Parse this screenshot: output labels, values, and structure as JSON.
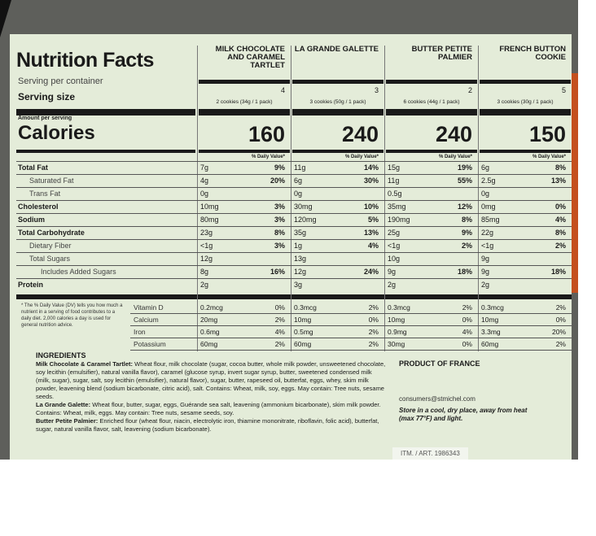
{
  "title": "Nutrition Facts",
  "serving_per_container_label": "Serving per container",
  "serving_size_label": "Serving size",
  "amount_per_serving_label": "Amount per serving",
  "calories_label": "Calories",
  "products": [
    {
      "name": "MILK CHOCOLATE AND CARAMEL TARTLET",
      "servings": "4",
      "size": "2 cookies (34g / 1 pack)",
      "calories": "160",
      "dv_header": "% Daily Value*"
    },
    {
      "name": "LA GRANDE GALETTE",
      "servings": "3",
      "size": "3 cookies (50g / 1 pack)",
      "calories": "240",
      "dv_header": "% Daily Value*"
    },
    {
      "name": "BUTTER PETITE PALMIER",
      "servings": "2",
      "size": "6 cookies (44g / 1 pack)",
      "calories": "240",
      "dv_header": "% Daily Value*"
    },
    {
      "name": "FRENCH BUTTON COOKIE",
      "servings": "5",
      "size": "3 cookies (30g / 1 pack)",
      "calories": "150",
      "dv_header": "% Daily Value*"
    }
  ],
  "nutrients": [
    {
      "label": "Total Fat",
      "values": [
        {
          "amount": "7g",
          "dv": "9%"
        },
        {
          "amount": "11g",
          "dv": "14%"
        },
        {
          "amount": "15g",
          "dv": "19%"
        },
        {
          "amount": "6g",
          "dv": "8%"
        }
      ]
    },
    {
      "label": "Saturated Fat",
      "values": [
        {
          "amount": "4g",
          "dv": "20%"
        },
        {
          "amount": "6g",
          "dv": "30%"
        },
        {
          "amount": "11g",
          "dv": "55%"
        },
        {
          "amount": "2.5g",
          "dv": "13%"
        }
      ]
    },
    {
      "label": "Trans Fat",
      "values": [
        {
          "amount": "0g"
        },
        {
          "amount": "0g"
        },
        {
          "amount": "0.5g"
        },
        {
          "amount": "0g"
        }
      ]
    },
    {
      "label": "Cholesterol",
      "values": [
        {
          "amount": "10mg",
          "dv": "3%"
        },
        {
          "amount": "30mg",
          "dv": "10%"
        },
        {
          "amount": "35mg",
          "dv": "12%"
        },
        {
          "amount": "0mg",
          "dv": "0%"
        }
      ]
    },
    {
      "label": "Sodium",
      "values": [
        {
          "amount": "80mg",
          "dv": "3%"
        },
        {
          "amount": "120mg",
          "dv": "5%"
        },
        {
          "amount": "190mg",
          "dv": "8%"
        },
        {
          "amount": "85mg",
          "dv": "4%"
        }
      ]
    },
    {
      "label": "Total Carbohydrate",
      "values": [
        {
          "amount": "23g",
          "dv": "8%"
        },
        {
          "amount": "35g",
          "dv": "13%"
        },
        {
          "amount": "25g",
          "dv": "9%"
        },
        {
          "amount": "22g",
          "dv": "8%"
        }
      ]
    },
    {
      "label": "Dietary Fiber",
      "values": [
        {
          "amount": "<1g",
          "dv": "3%"
        },
        {
          "amount": "1g",
          "dv": "4%"
        },
        {
          "amount": "<1g",
          "dv": "2%"
        },
        {
          "amount": "<1g",
          "dv": "2%"
        }
      ]
    },
    {
      "label": "Total Sugars",
      "values": [
        {
          "amount": "12g"
        },
        {
          "amount": "13g"
        },
        {
          "amount": "10g"
        },
        {
          "amount": "9g"
        }
      ]
    },
    {
      "label": "Includes Added Sugars",
      "values": [
        {
          "amount": "8g",
          "dv": "16%"
        },
        {
          "amount": "12g",
          "dv": "24%"
        },
        {
          "amount": "9g",
          "dv": "18%"
        },
        {
          "amount": "9g",
          "dv": "18%"
        }
      ]
    },
    {
      "label": "Protein",
      "values": [
        {
          "amount": "2g"
        },
        {
          "amount": "3g"
        },
        {
          "amount": "2g"
        },
        {
          "amount": "2g"
        }
      ]
    }
  ],
  "footnote": "* The % Daily Value (DV) tells you how much a nutrient in a serving of food contributes to a daily diet. 2,000 calories a day is used for general nutrition advice.",
  "vitamins": [
    {
      "label": "Vitamin D",
      "values": [
        {
          "amount": "0.2mcg",
          "dv": "0%"
        },
        {
          "amount": "0.3mcg",
          "dv": "2%"
        },
        {
          "amount": "0.3mcg",
          "dv": "2%"
        },
        {
          "amount": "0.3mcg",
          "dv": "2%"
        }
      ]
    },
    {
      "label": "Calcium",
      "values": [
        {
          "amount": "20mg",
          "dv": "2%"
        },
        {
          "amount": "10mg",
          "dv": "0%"
        },
        {
          "amount": "10mg",
          "dv": "0%"
        },
        {
          "amount": "10mg",
          "dv": "0%"
        }
      ]
    },
    {
      "label": "Iron",
      "values": [
        {
          "amount": "0.6mg",
          "dv": "4%"
        },
        {
          "amount": "0.5mg",
          "dv": "2%"
        },
        {
          "amount": "0.9mg",
          "dv": "4%"
        },
        {
          "amount": "3.3mg",
          "dv": "20%"
        }
      ]
    },
    {
      "label": "Potassium",
      "values": [
        {
          "amount": "60mg",
          "dv": "2%"
        },
        {
          "amount": "60mg",
          "dv": "2%"
        },
        {
          "amount": "30mg",
          "dv": "0%"
        },
        {
          "amount": "60mg",
          "dv": "2%"
        }
      ]
    }
  ],
  "ingredients": {
    "title": "INGREDIENTS",
    "paragraphs": [
      {
        "name": "Milk Chocolate & Caramel Tartlet:",
        "text": "Wheat flour, milk chocolate (sugar, cocoa butter, whole milk powder, unsweetened chocolate, soy lecithin (emulsifier), natural vanilla flavor), caramel (glucose syrup, invert sugar syrup, butter, sweetened condensed milk (milk, sugar), sugar, salt, soy lecithin (emulsifier), natural flavor), sugar, butter, rapeseed oil, butterfat, eggs, whey, skim milk powder, leavening blend (sodium bicarbonate, citric acid), salt. Contains: Wheat, milk, soy, eggs. May contain: Tree nuts, sesame seeds."
      },
      {
        "name": "La Grande Galette:",
        "text": "Wheat flour, butter, sugar, eggs, Guérande sea salt, leavening (ammonium bicarbonate), skim milk powder. Contains: Wheat, milk, eggs. May contain: Tree nuts, sesame seeds, soy."
      },
      {
        "name": "Butter Petite Palmier:",
        "text": "Enriched flour (wheat flour, niacin, electrolytic iron, thiamine mononitrate, riboflavin, folic acid), butterfat, sugar, natural vanilla flavor, salt, leavening (sodium bicarbonate)."
      }
    ]
  },
  "origin": "PRODUCT OF FRANCE",
  "contact": "consumers@stmichel.com",
  "storage": "Store in a cool, dry place, away from heat (max 77°F) and light.",
  "item_number": "ITM. / ART. 1986343"
}
